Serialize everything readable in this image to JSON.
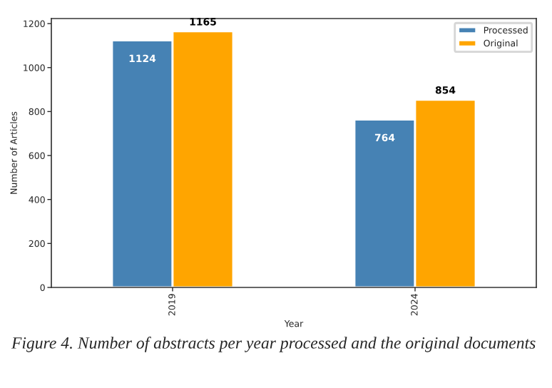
{
  "chart_data": {
    "type": "bar",
    "xlabel": "Year",
    "ylabel": "Number of Articles",
    "categories": [
      "2019",
      "2024"
    ],
    "series": [
      {
        "name": "Processed",
        "color": "#4682b4",
        "values": [
          1124,
          764
        ]
      },
      {
        "name": "Original",
        "color": "#ffa500",
        "values": [
          1165,
          854
        ]
      }
    ],
    "ylim": [
      0,
      1223
    ],
    "yticks": [
      0,
      200,
      400,
      600,
      800,
      1000,
      1200
    ],
    "grid": false,
    "legend": "top right",
    "data_labels": true,
    "annotations": [
      "Figure 4. Number of abstracts per year processed and the original documents"
    ]
  }
}
